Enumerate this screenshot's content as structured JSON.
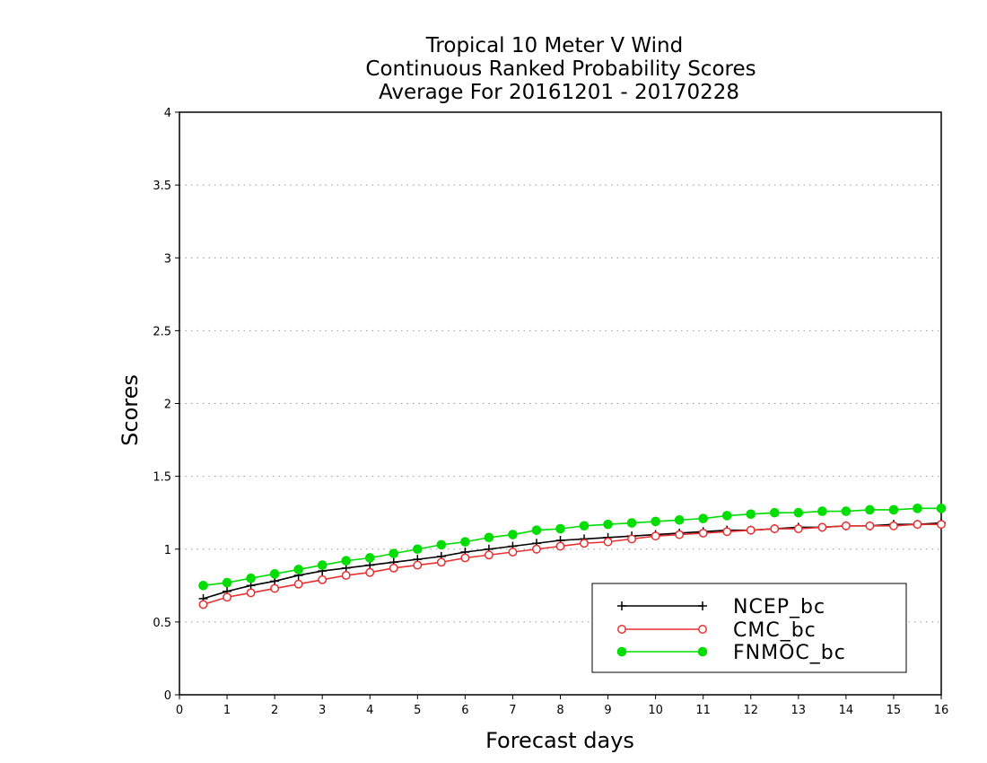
{
  "chart_data": {
    "type": "line",
    "title": [
      "Tropical 10 Meter V Wind",
      "Continuous Ranked Probability Scores",
      "Average For 20161201 - 20170228"
    ],
    "xlabel": "Forecast days",
    "ylabel": "Scores",
    "xlim": [
      0,
      16
    ],
    "ylim": [
      0,
      4
    ],
    "xticks": [
      "0",
      "1",
      "2",
      "3",
      "4",
      "5",
      "6",
      "7",
      "8",
      "9",
      "10",
      "11",
      "12",
      "13",
      "14",
      "15",
      "16"
    ],
    "yticks": [
      "0",
      "0.5",
      "1",
      "1.5",
      "2",
      "2.5",
      "3",
      "3.5",
      "4"
    ],
    "grid": "horizontal dotted",
    "legend_position": "bottom-right",
    "x": [
      0.5,
      1,
      1.5,
      2,
      2.5,
      3,
      3.5,
      4,
      4.5,
      5,
      5.5,
      6,
      6.5,
      7,
      7.5,
      8,
      8.5,
      9,
      9.5,
      10,
      10.5,
      11,
      11.5,
      12,
      12.5,
      13,
      13.5,
      14,
      14.5,
      15,
      15.5,
      16
    ],
    "series": [
      {
        "name": "NCEP_bc",
        "color": "#000000",
        "marker": "plus",
        "values": [
          0.66,
          0.71,
          0.75,
          0.78,
          0.82,
          0.85,
          0.87,
          0.89,
          0.91,
          0.93,
          0.95,
          0.98,
          1.0,
          1.02,
          1.04,
          1.06,
          1.07,
          1.08,
          1.09,
          1.1,
          1.11,
          1.12,
          1.13,
          1.13,
          1.14,
          1.15,
          1.15,
          1.16,
          1.16,
          1.17,
          1.17,
          1.18
        ]
      },
      {
        "name": "CMC_bc",
        "color": "#e83030",
        "marker": "open-circle",
        "values": [
          0.62,
          0.67,
          0.7,
          0.73,
          0.76,
          0.79,
          0.82,
          0.84,
          0.87,
          0.89,
          0.91,
          0.94,
          0.96,
          0.98,
          1.0,
          1.02,
          1.04,
          1.05,
          1.07,
          1.09,
          1.1,
          1.11,
          1.12,
          1.13,
          1.14,
          1.14,
          1.15,
          1.16,
          1.16,
          1.16,
          1.17,
          1.17
        ]
      },
      {
        "name": "FNMOC_bc",
        "color": "#00dd00",
        "marker": "filled-circle",
        "values": [
          0.75,
          0.77,
          0.8,
          0.83,
          0.86,
          0.89,
          0.92,
          0.94,
          0.97,
          1.0,
          1.03,
          1.05,
          1.08,
          1.1,
          1.13,
          1.14,
          1.16,
          1.17,
          1.18,
          1.19,
          1.2,
          1.21,
          1.23,
          1.24,
          1.25,
          1.25,
          1.26,
          1.26,
          1.27,
          1.27,
          1.28,
          1.28
        ]
      }
    ]
  }
}
